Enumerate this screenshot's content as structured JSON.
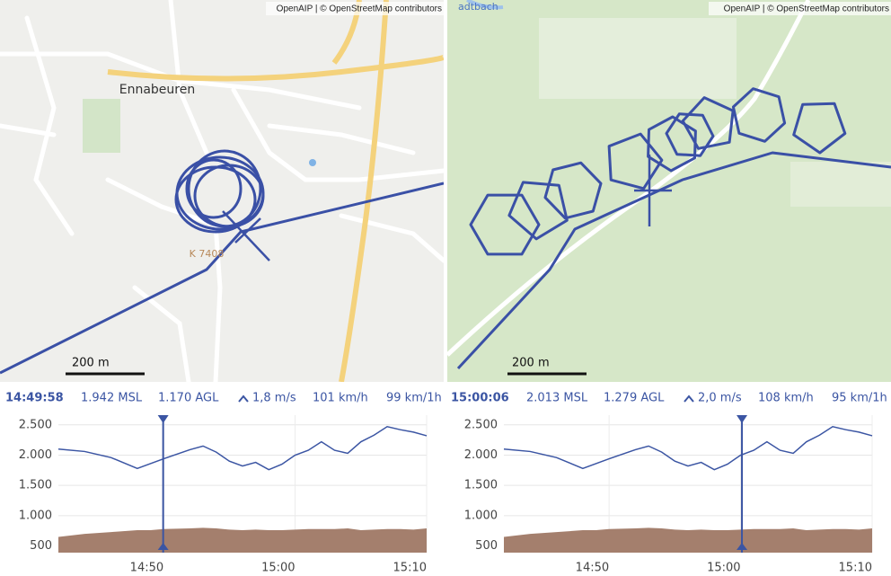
{
  "panels": [
    {
      "attribution": "OpenAIP | © OpenStreetMap contributors",
      "scale": "200 m",
      "labels": [
        "Ennabeuren",
        "K 7408"
      ],
      "stats": {
        "time": "14:49:58",
        "msl": "1.942 MSL",
        "agl": "1.170 AGL",
        "climb": "1,8 m/s",
        "speed": "101 km/h",
        "wind": "99 km/1h"
      }
    },
    {
      "attribution": "OpenAIP | © OpenStreetMap contributors",
      "scale": "200 m",
      "labels": [
        "adtbach"
      ],
      "stats": {
        "time": "15:00:06",
        "msl": "2.013 MSL",
        "agl": "1.279 AGL",
        "climb": "2,0 m/s",
        "speed": "108 km/h",
        "wind": "95 km/1h"
      }
    }
  ],
  "chart_data": {
    "type": "line",
    "x": [
      "14:42",
      "14:44",
      "14:46",
      "14:48",
      "14:49",
      "14:50",
      "14:52",
      "14:53",
      "14:54",
      "14:55",
      "14:56",
      "14:57",
      "14:58",
      "14:59",
      "15:00",
      "15:01",
      "15:02",
      "15:03",
      "15:04",
      "15:05",
      "15:06",
      "15:07",
      "15:08",
      "15:09",
      "15:10"
    ],
    "series": [
      {
        "type": "line",
        "color": "#3b55a3",
        "values": [
          2100,
          2060,
          1960,
          1780,
          1860,
          1940,
          2090,
          2150,
          2050,
          1900,
          1820,
          1880,
          1760,
          1850,
          2000,
          2080,
          2220,
          2080,
          2030,
          2220,
          2330,
          2470,
          2420,
          2380,
          2320
        ]
      },
      {
        "type": "area",
        "color": "#a47f6d",
        "values": [
          650,
          700,
          730,
          760,
          760,
          780,
          790,
          800,
          790,
          770,
          760,
          770,
          760,
          760,
          770,
          780,
          780,
          780,
          790,
          760,
          770,
          780,
          780,
          770,
          790
        ]
      }
    ],
    "xlim": [
      "14:42",
      "15:10"
    ],
    "xticks": [
      "14:50",
      "15:00",
      "15:10"
    ],
    "ylim": [
      390,
      2660
    ],
    "yticks": [
      {
        "value": 500,
        "label": "500"
      },
      {
        "value": 1000,
        "label": "1.000"
      },
      {
        "value": 1500,
        "label": "1.500"
      },
      {
        "value": 2000,
        "label": "2.000"
      },
      {
        "value": 2500,
        "label": "2.500"
      }
    ],
    "grid": true
  }
}
